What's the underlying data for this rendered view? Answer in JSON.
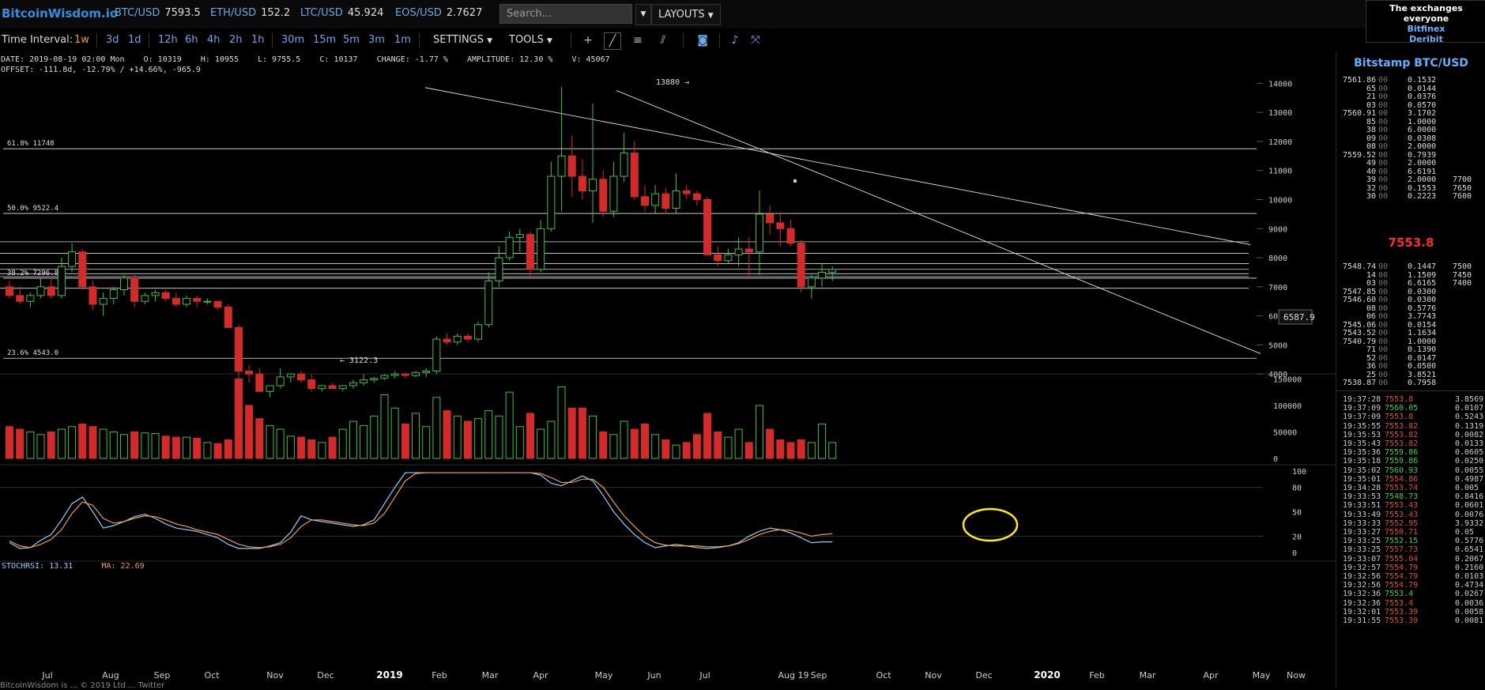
{
  "topbar": {
    "brand": "BitcoinWisdom.io",
    "pairs": [
      {
        "label": "BTC/USD",
        "value": "7593.5"
      },
      {
        "label": "ETH/USD",
        "value": "152.2"
      },
      {
        "label": "LTC/USD",
        "value": "45.924"
      },
      {
        "label": "EOS/USD",
        "value": "2.7627"
      }
    ],
    "search_placeholder": "Search...",
    "layouts_label": "LAYOUTS",
    "exchanges": {
      "heading": "The exchanges everyone",
      "links": [
        "Bitfinex",
        "Deribit"
      ]
    }
  },
  "toolbar": {
    "interval_label": "Time Interval:",
    "intervals": [
      "1w",
      "3d",
      "1d",
      "12h",
      "6h",
      "4h",
      "2h",
      "1h",
      "30m",
      "15m",
      "5m",
      "3m",
      "1m"
    ],
    "active_interval": "1w",
    "settings_label": "SETTINGS",
    "tools_label": "TOOLS",
    "icons": [
      "crosshair-icon",
      "line-tool-icon",
      "hline-tool-icon",
      "fib-tool-icon",
      "camera-icon",
      "alert-bell-icon",
      "fullscreen-icon"
    ]
  },
  "info": {
    "line1": "DATE: 2019-08-19 02:00 Mon    O: 10319    H: 10955    L: 9755.5    C: 10137    CHANGE: -1.77 %    AMPLITUDE: 12.30 %    V: 45067",
    "line2": "OFFSET: -111.8d, -12.79% / +14.66%, -965.9"
  },
  "stoch": {
    "rsi_label": "STOCHRSI: 13.31",
    "ma_label": "MA: 22.69",
    "rsi_color": "#8fd0ff",
    "ma_color": "#f0a030"
  },
  "chart_data": {
    "type": "candlestick",
    "market": "Bitstamp BTC/USD",
    "interval": "1w",
    "x_labels": [
      "Jul",
      "Aug",
      "Sep",
      "Oct",
      "Nov",
      "Dec",
      "2019",
      "Feb",
      "Mar",
      "Apr",
      "May",
      "Jun",
      "Jul",
      "Aug 19",
      "Sep",
      "Oct",
      "Nov",
      "Dec",
      "2020",
      "Feb",
      "Mar",
      "Apr",
      "May",
      "Now"
    ],
    "price_ticks": [
      4000,
      5000,
      6000,
      7000,
      8000,
      9000,
      10000,
      11000,
      12000,
      13000,
      14000
    ],
    "volume_ticks": [
      0,
      50000,
      100000,
      150000
    ],
    "stoch_ticks": [
      0,
      20,
      50,
      80,
      100
    ],
    "price_ylim": [
      3000,
      14200
    ],
    "annotations": {
      "high": "13880 →",
      "low": "← 3122.3",
      "cursor_price": "6587.9"
    },
    "fib_levels": [
      {
        "label": "61.8% 11748",
        "value": 11748
      },
      {
        "label": "50.0% 9522.4",
        "value": 9522.4
      },
      {
        "label": "38.2% 7296.8",
        "value": 7296.8
      },
      {
        "label": "23.6% 4543.0",
        "value": 4543.0
      }
    ],
    "candles": [
      [
        7000,
        7200,
        6600,
        6700
      ],
      [
        6700,
        7000,
        6400,
        6500
      ],
      [
        6500,
        6800,
        6300,
        6700
      ],
      [
        6700,
        7300,
        6600,
        7000
      ],
      [
        7000,
        7300,
        6600,
        6700
      ],
      [
        6700,
        8000,
        6600,
        7700
      ],
      [
        7700,
        8500,
        7500,
        8200
      ],
      [
        8200,
        8300,
        6900,
        7000
      ],
      [
        7000,
        7200,
        6200,
        6400
      ],
      [
        6400,
        6800,
        6000,
        6600
      ],
      [
        6600,
        7000,
        6400,
        6900
      ],
      [
        6900,
        7400,
        6700,
        7300
      ],
      [
        7300,
        7400,
        6300,
        6500
      ],
      [
        6500,
        6800,
        6400,
        6700
      ],
      [
        6700,
        6900,
        6500,
        6800
      ],
      [
        6800,
        6900,
        6500,
        6600
      ],
      [
        6600,
        6800,
        6300,
        6400
      ],
      [
        6400,
        6700,
        6300,
        6600
      ],
      [
        6600,
        6700,
        6300,
        6500
      ],
      [
        6500,
        6600,
        6400,
        6500
      ],
      [
        6500,
        6500,
        6200,
        6300
      ],
      [
        6300,
        6400,
        5600,
        5600
      ],
      [
        5600,
        5700,
        3800,
        4100
      ],
      [
        4100,
        4300,
        3700,
        4000
      ],
      [
        4000,
        4200,
        3500,
        3400
      ],
      [
        3400,
        3600,
        3200,
        3600
      ],
      [
        3600,
        4200,
        3500,
        3900
      ],
      [
        3900,
        4000,
        3700,
        4000
      ],
      [
        4000,
        4100,
        3700,
        3800
      ],
      [
        3800,
        4000,
        3400,
        3500
      ],
      [
        3500,
        3600,
        3400,
        3600
      ],
      [
        3600,
        3700,
        3500,
        3500
      ],
      [
        3500,
        3600,
        3400,
        3600
      ],
      [
        3600,
        3800,
        3500,
        3700
      ],
      [
        3700,
        4000,
        3600,
        3800
      ],
      [
        3800,
        3900,
        3700,
        3850
      ],
      [
        3850,
        4000,
        3800,
        3950
      ],
      [
        3950,
        4100,
        3850,
        4000
      ],
      [
        4000,
        4050,
        3850,
        3950
      ],
      [
        3950,
        4100,
        3900,
        4050
      ],
      [
        4050,
        4200,
        3900,
        4100
      ],
      [
        4100,
        5300,
        4000,
        5200
      ],
      [
        5200,
        5400,
        5000,
        5100
      ],
      [
        5100,
        5400,
        5000,
        5300
      ],
      [
        5300,
        5400,
        5100,
        5200
      ],
      [
        5200,
        5800,
        5100,
        5700
      ],
      [
        5700,
        7500,
        5600,
        7200
      ],
      [
        7200,
        8400,
        7000,
        8000
      ],
      [
        8000,
        8900,
        7900,
        8700
      ],
      [
        8700,
        9000,
        8200,
        8800
      ],
      [
        8800,
        8900,
        7300,
        7600
      ],
      [
        7600,
        9300,
        7500,
        9000
      ],
      [
        9000,
        11300,
        8900,
        10800
      ],
      [
        10800,
        13880,
        9600,
        11500
      ],
      [
        11500,
        12200,
        10100,
        10800
      ],
      [
        10800,
        11400,
        10000,
        10300
      ],
      [
        10300,
        13300,
        9200,
        10700
      ],
      [
        10700,
        11000,
        9400,
        9600
      ],
      [
        9600,
        11300,
        9400,
        10800
      ],
      [
        10800,
        12300,
        10600,
        11600
      ],
      [
        11600,
        12000,
        10000,
        10100
      ],
      [
        10100,
        10500,
        9600,
        9800
      ],
      [
        9800,
        10500,
        9500,
        10200
      ],
      [
        10200,
        10400,
        9500,
        9700
      ],
      [
        9700,
        10900,
        9500,
        10300
      ],
      [
        10300,
        10500,
        10000,
        10200
      ],
      [
        10200,
        10300,
        9800,
        10000
      ],
      [
        10000,
        10100,
        8100,
        8100
      ],
      [
        8100,
        8400,
        7700,
        7900
      ],
      [
        7900,
        8300,
        7800,
        8100
      ],
      [
        8100,
        8700,
        7700,
        8300
      ],
      [
        8300,
        8700,
        7400,
        8200
      ],
      [
        8200,
        10300,
        7400,
        9500
      ],
      [
        9500,
        9800,
        8800,
        9200
      ],
      [
        9200,
        9500,
        8400,
        9000
      ],
      [
        9000,
        9300,
        8400,
        8500
      ],
      [
        8500,
        8600,
        6800,
        7000
      ],
      [
        7000,
        7400,
        6600,
        7300
      ],
      [
        7300,
        7800,
        7000,
        7500
      ],
      [
        7500,
        7700,
        7200,
        7594
      ]
    ],
    "volumes": [
      60000,
      55000,
      50000,
      45000,
      50000,
      55000,
      60000,
      65000,
      60000,
      55000,
      50000,
      45000,
      50000,
      48000,
      47000,
      42000,
      40000,
      40000,
      38000,
      30000,
      28000,
      35000,
      150000,
      100000,
      75000,
      62000,
      55000,
      42000,
      40000,
      35000,
      30000,
      40000,
      55000,
      70000,
      62000,
      80000,
      120000,
      95000,
      65000,
      85000,
      60000,
      115000,
      90000,
      80000,
      70000,
      75000,
      90000,
      80000,
      125000,
      60000,
      85000,
      55000,
      70000,
      135000,
      95000,
      95000,
      80000,
      50000,
      45000,
      70000,
      55000,
      65000,
      45000,
      35000,
      25000,
      30000,
      45000,
      85000,
      50000,
      40000,
      55000,
      30000,
      100000,
      55000,
      35000,
      30000,
      35000,
      30000,
      65000,
      30000
    ],
    "stoch_rsi": [
      12,
      5,
      6,
      15,
      22,
      40,
      60,
      68,
      50,
      30,
      33,
      38,
      44,
      47,
      42,
      35,
      30,
      28,
      26,
      22,
      18,
      10,
      5,
      5,
      5,
      8,
      12,
      25,
      45,
      40,
      38,
      36,
      34,
      32,
      34,
      40,
      60,
      80,
      98,
      98,
      98,
      98,
      98,
      98,
      98,
      98,
      98,
      98,
      98,
      98,
      98,
      95,
      85,
      82,
      88,
      94,
      88,
      70,
      50,
      35,
      22,
      12,
      6,
      8,
      10,
      8,
      6,
      5,
      6,
      8,
      12,
      20,
      26,
      30,
      28,
      24,
      18,
      12,
      13,
      13
    ],
    "stoch_ma": [
      14,
      8,
      6,
      10,
      16,
      28,
      48,
      62,
      58,
      42,
      36,
      38,
      42,
      45,
      44,
      40,
      35,
      32,
      28,
      25,
      22,
      16,
      10,
      7,
      6,
      7,
      10,
      18,
      32,
      40,
      40,
      38,
      36,
      34,
      33,
      36,
      48,
      68,
      88,
      97,
      98,
      98,
      98,
      98,
      98,
      98,
      98,
      98,
      98,
      98,
      98,
      97,
      92,
      86,
      86,
      90,
      90,
      80,
      62,
      45,
      32,
      20,
      12,
      9,
      8,
      8,
      8,
      7,
      7,
      8,
      11,
      16,
      22,
      26,
      28,
      27,
      24,
      20,
      22,
      23
    ]
  },
  "orderbook": {
    "title": "Bitstamp BTC/USD",
    "last_price": "7553.8",
    "asks": [
      [
        "7561.86",
        "00",
        "0.1532",
        ""
      ],
      [
        "65",
        "00",
        "0.0144",
        ""
      ],
      [
        "21",
        "00",
        "0.0376",
        ""
      ],
      [
        "03",
        "00",
        "0.0570",
        ""
      ],
      [
        "7560.91",
        "00",
        "3.1702",
        ""
      ],
      [
        "85",
        "00",
        "1.0000",
        ""
      ],
      [
        "38",
        "00",
        "6.0000",
        ""
      ],
      [
        "09",
        "00",
        "0.0308",
        ""
      ],
      [
        "08",
        "00",
        "2.0000",
        ""
      ],
      [
        "7559.52",
        "00",
        "0.7939",
        ""
      ],
      [
        "49",
        "00",
        "2.0000",
        ""
      ],
      [
        "40",
        "00",
        "6.6191",
        ""
      ],
      [
        "39",
        "00",
        "2.0000",
        "7700"
      ],
      [
        "32",
        "00",
        "0.1553",
        "7650"
      ],
      [
        "30",
        "00",
        "0.2223",
        "7600"
      ]
    ],
    "bids": [
      [
        "7548.74",
        "00",
        "0.1447",
        "7500"
      ],
      [
        "14",
        "00",
        "1.1509",
        "7450"
      ],
      [
        "03",
        "00",
        "6.6165",
        "7400"
      ],
      [
        "7547.85",
        "00",
        "0.0300",
        ""
      ],
      [
        "7546.60",
        "00",
        "0.0300",
        ""
      ],
      [
        "08",
        "00",
        "0.5776",
        ""
      ],
      [
        "06",
        "00",
        "3.7743",
        ""
      ],
      [
        "7545.06",
        "00",
        "0.0154",
        ""
      ],
      [
        "7543.52",
        "00",
        "1.1634",
        ""
      ],
      [
        "7540.79",
        "00",
        "1.0000",
        ""
      ],
      [
        "71",
        "00",
        "0.1390",
        ""
      ],
      [
        "52",
        "00",
        "0.0147",
        ""
      ],
      [
        "36",
        "00",
        "0.0500",
        ""
      ],
      [
        "25",
        "00",
        "3.8521",
        ""
      ],
      [
        "7538.87",
        "00",
        "0.7958",
        ""
      ]
    ],
    "trades": [
      [
        "19:37:28",
        "7553.8",
        "sell",
        "3.8569"
      ],
      [
        "19:37:09",
        "7560.05",
        "buy",
        "0.0107"
      ],
      [
        "19:37:09",
        "7553.8",
        "sell",
        "0.5243"
      ],
      [
        "19:35:55",
        "7553.82",
        "sell",
        "0.1319"
      ],
      [
        "19:35:53",
        "7553.82",
        "sell",
        "0.0082"
      ],
      [
        "19:35:43",
        "7553.82",
        "sell",
        "0.0133"
      ],
      [
        "19:35:36",
        "7559.86",
        "buy",
        "0.0605"
      ],
      [
        "19:35:18",
        "7559.86",
        "buy",
        "0.0250"
      ],
      [
        "19:35:02",
        "7560.93",
        "buy",
        "0.0055"
      ],
      [
        "19:35:01",
        "7554.86",
        "sell",
        "0.4987"
      ],
      [
        "19:34:28",
        "7553.74",
        "sell",
        "0.005"
      ],
      [
        "19:33:53",
        "7548.73",
        "buy",
        "0.8416"
      ],
      [
        "19:33:51",
        "7553.43",
        "sell",
        "0.0601"
      ],
      [
        "19:33:49",
        "7553.43",
        "sell",
        "0.0076"
      ],
      [
        "19:33:33",
        "7552.95",
        "sell",
        "3.9332"
      ],
      [
        "19:33:27",
        "7550.71",
        "sell",
        "0.05"
      ],
      [
        "19:33:25",
        "7552.15",
        "buy",
        "0.5776"
      ],
      [
        "19:33:25",
        "7557.73",
        "sell",
        "0.6541"
      ],
      [
        "19:33:07",
        "7555.04",
        "sell",
        "0.2067"
      ],
      [
        "19:32:57",
        "7554.79",
        "sell",
        "0.2160"
      ],
      [
        "19:32:56",
        "7554.79",
        "sell",
        "0.0103"
      ],
      [
        "19:32:56",
        "7554.79",
        "sell",
        "0.4734"
      ],
      [
        "19:32:36",
        "7553.4",
        "buy",
        "0.0267"
      ],
      [
        "19:32:36",
        "7553.4",
        "sell",
        "0.0036"
      ],
      [
        "19:32:01",
        "7553.39",
        "sell",
        "0.0058"
      ],
      [
        "19:31:55",
        "7553.39",
        "sell",
        "0.0081"
      ]
    ]
  },
  "status": {
    "text": "BitcoinWisdom is  ...  © 2019 Ltd  ...  Twitter"
  },
  "colors": {
    "up": "#3fbf3f",
    "down": "#d42a2a",
    "fib": "#e8e8e8",
    "accent": "#f0a030",
    "link": "#6aa8e8"
  }
}
